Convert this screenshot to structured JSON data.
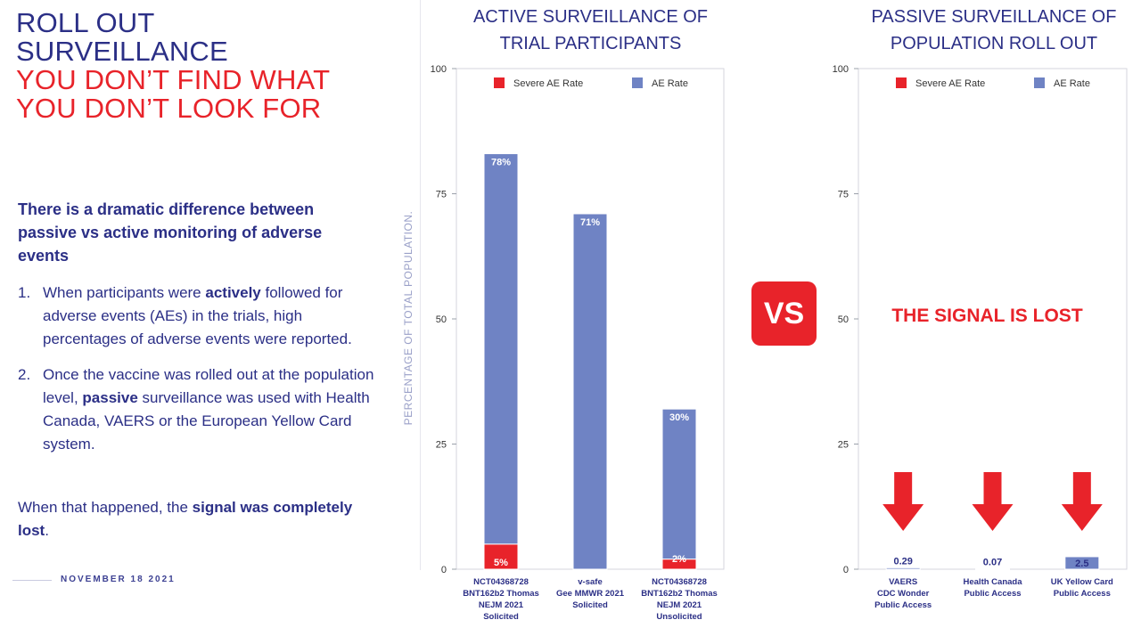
{
  "header": {
    "title_line1": "ROLL OUT",
    "title_line2": "SURVEILLANCE",
    "title_line3": "YOU DON’T FIND WHAT",
    "title_line4": "YOU DON’T LOOK FOR"
  },
  "body": {
    "lead": "There is a dramatic difference between passive vs active monitoring of adverse events",
    "point1": {
      "num": "1.",
      "t1": "When participants were ",
      "b1": "actively",
      "t2": " followed for adverse events (AEs) in the trials, high percentages of adverse events were reported."
    },
    "point2": {
      "num": "2.",
      "t1": "Once the vaccine was rolled out at the population level, ",
      "b1": "passive",
      "t2": " surveillance was used with Health Canada, VAERS or the European Yellow Card system."
    },
    "closing": {
      "t1": "When that happened, the ",
      "b1": "signal was completely lost",
      "t2": "."
    },
    "date": "NOVEMBER 18 2021"
  },
  "colors": {
    "navy": "#2b2f86",
    "red": "#e8232a",
    "bar_blue": "#6f83c4"
  },
  "vs_label": "VS",
  "signal_lost": "THE SIGNAL IS LOST",
  "chart_data": [
    {
      "type": "bar",
      "title_line1": "ACTIVE SURVEILLANCE OF",
      "title_line2": "TRIAL PARTICIPANTS",
      "ylabel": "PERCENTAGE OF TOTAL POPULATION.",
      "ylim": [
        0,
        100
      ],
      "yticks": [
        0,
        25,
        50,
        75,
        100
      ],
      "legend_placement": "top",
      "categories": [
        [
          "NCT04368728",
          "BNT162b2 Thomas",
          "NEJM 2021",
          "Solicited"
        ],
        [
          "v-safe",
          "Gee MMWR 2021",
          "Solicited"
        ],
        [
          "NCT04368728",
          "BNT162b2 Thomas",
          "NEJM 2021",
          "Unsolicited"
        ]
      ],
      "series": [
        {
          "name": "Severe AE Rate",
          "color": "#e8232a",
          "values": [
            5,
            0,
            2
          ],
          "labels": [
            "5%",
            "",
            "2%"
          ]
        },
        {
          "name": "AE Rate",
          "color": "#6f83c4",
          "values": [
            78,
            71,
            30
          ],
          "labels": [
            "78%",
            "71%",
            "30%"
          ]
        }
      ]
    },
    {
      "type": "bar",
      "title_line1": "PASSIVE SURVEILLANCE OF",
      "title_line2": "POPULATION ROLL OUT",
      "ylim": [
        0,
        100
      ],
      "yticks": [
        0,
        25,
        50,
        75,
        100
      ],
      "legend_placement": "top",
      "categories": [
        [
          "VAERS",
          "CDC Wonder",
          "Public Access"
        ],
        [
          "Health Canada",
          "Public Access"
        ],
        [
          "UK Yellow Card",
          "Public Access"
        ]
      ],
      "series": [
        {
          "name": "Severe AE Rate",
          "color": "#e8232a",
          "values": [
            0,
            0,
            0
          ]
        },
        {
          "name": "AE Rate",
          "color": "#6f83c4",
          "values": [
            0.29,
            0.07,
            2.5
          ],
          "labels": [
            "0.29",
            "0.07",
            "2.5"
          ]
        }
      ]
    }
  ]
}
